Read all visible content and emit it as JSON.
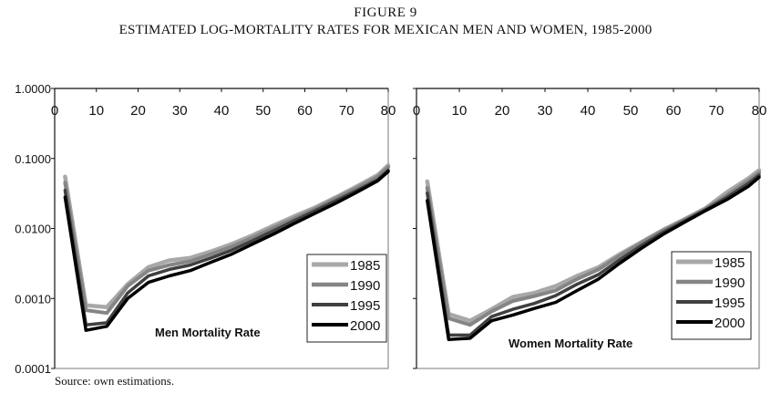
{
  "figure": {
    "label": "FIGURE 9",
    "title": "ESTIMATED LOG-MORTALITY RATES FOR MEXICAN MEN AND WOMEN, 1985-2000",
    "source": "Source: own estimations."
  },
  "colors": {
    "1985": "#a8a8a8",
    "1990": "#858585",
    "1995": "#404040",
    "2000": "#000000"
  },
  "chart_data": [
    {
      "type": "line",
      "title": "Men Mortality Rate",
      "yscale": "log",
      "ylim": [
        0.0001,
        1.0
      ],
      "xlim": [
        0,
        80
      ],
      "xticks": [
        "0",
        "10",
        "20",
        "30",
        "40",
        "50",
        "60",
        "70",
        "80"
      ],
      "yticks": [
        "1.0000",
        "0.1000",
        "0.0100",
        "0.0010",
        "0.0001"
      ],
      "x": [
        2.5,
        7.5,
        12.5,
        17.5,
        22.5,
        27.5,
        32.5,
        37.5,
        42.5,
        47.5,
        52.5,
        57.5,
        62.5,
        67.5,
        72.5,
        77.5,
        80
      ],
      "series": [
        {
          "name": "1985",
          "values": [
            0.055,
            0.0008,
            0.00075,
            0.0016,
            0.0028,
            0.0035,
            0.0038,
            0.0047,
            0.006,
            0.008,
            0.011,
            0.015,
            0.02,
            0.028,
            0.04,
            0.058,
            0.08
          ]
        },
        {
          "name": "1990",
          "values": [
            0.045,
            0.00068,
            0.00062,
            0.0015,
            0.0025,
            0.003,
            0.0034,
            0.0043,
            0.0055,
            0.0074,
            0.0102,
            0.014,
            0.019,
            0.027,
            0.038,
            0.055,
            0.075
          ]
        },
        {
          "name": "1995",
          "values": [
            0.035,
            0.00042,
            0.00045,
            0.0012,
            0.0021,
            0.0026,
            0.003,
            0.0038,
            0.0049,
            0.0067,
            0.0093,
            0.013,
            0.018,
            0.025,
            0.035,
            0.05,
            0.068
          ]
        },
        {
          "name": "2000",
          "values": [
            0.028,
            0.00035,
            0.0004,
            0.001,
            0.0017,
            0.0021,
            0.0025,
            0.0033,
            0.0043,
            0.006,
            0.0083,
            0.0118,
            0.0165,
            0.023,
            0.033,
            0.048,
            0.065
          ]
        }
      ],
      "legend": "right"
    },
    {
      "type": "line",
      "title": "Women Mortality Rate",
      "yscale": "log",
      "ylim": [
        0.0001,
        1.0
      ],
      "xlim": [
        0,
        80
      ],
      "xticks": [
        "0",
        "10",
        "20",
        "30",
        "40",
        "50",
        "60",
        "70",
        "80"
      ],
      "x": [
        2.5,
        7.5,
        12.5,
        17.5,
        22.5,
        27.5,
        32.5,
        37.5,
        42.5,
        47.5,
        52.5,
        57.5,
        62.5,
        67.5,
        72.5,
        77.5,
        80
      ],
      "series": [
        {
          "name": "1985",
          "values": [
            0.047,
            0.0006,
            0.00048,
            0.0007,
            0.00105,
            0.0012,
            0.0015,
            0.0021,
            0.0028,
            0.0043,
            0.0064,
            0.0095,
            0.0135,
            0.0195,
            0.033,
            0.052,
            0.068
          ]
        },
        {
          "name": "1990",
          "values": [
            0.038,
            0.00052,
            0.00042,
            0.00065,
            0.00092,
            0.00108,
            0.0013,
            0.0019,
            0.0026,
            0.0041,
            0.0062,
            0.0093,
            0.0132,
            0.019,
            0.03,
            0.048,
            0.063
          ]
        },
        {
          "name": "1995",
          "values": [
            0.032,
            0.0003,
            0.0003,
            0.00055,
            0.0007,
            0.00085,
            0.0011,
            0.0016,
            0.0022,
            0.0036,
            0.0057,
            0.0088,
            0.0127,
            0.0185,
            0.028,
            0.044,
            0.058
          ]
        },
        {
          "name": "2000",
          "values": [
            0.025,
            0.00026,
            0.00027,
            0.00048,
            0.00058,
            0.00072,
            0.00088,
            0.0013,
            0.0019,
            0.0032,
            0.0052,
            0.0082,
            0.0122,
            0.018,
            0.026,
            0.04,
            0.054
          ]
        }
      ],
      "legend": "right"
    }
  ]
}
